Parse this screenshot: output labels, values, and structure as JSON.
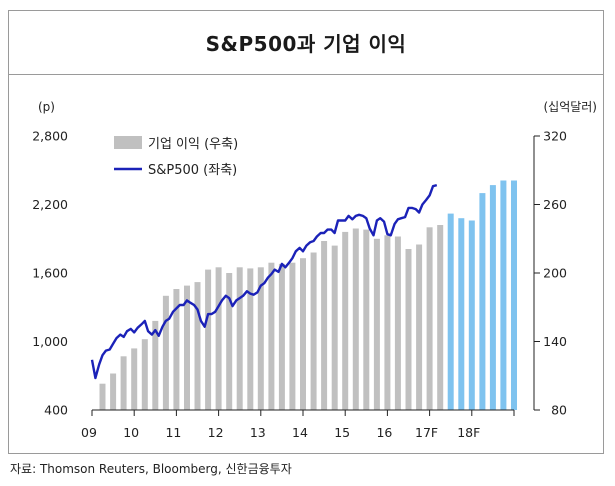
{
  "chart_data": {
    "type": "bar",
    "title": "S&P500과 기업 이익",
    "source": "자료: Thomson Reuters, Bloomberg, 신한금융투자",
    "left_axis": {
      "unit": "(p)",
      "range": [
        400,
        2800
      ],
      "ticks": [
        "2,800",
        "2,200",
        "1,600",
        "1,000",
        "400"
      ],
      "tick_values": [
        2800,
        2200,
        1600,
        1000,
        400
      ]
    },
    "right_axis": {
      "unit": "(십억달러)",
      "range": [
        80,
        320
      ],
      "ticks": [
        "320",
        "260",
        "200",
        "140",
        "80"
      ],
      "tick_values": [
        320,
        260,
        200,
        140,
        80
      ]
    },
    "x_axis": {
      "ticks": [
        "09",
        "10",
        "11",
        "12",
        "13",
        "14",
        "15",
        "16",
        "17F",
        "18F"
      ],
      "range": [
        2009.0,
        2019.0
      ]
    },
    "legend": {
      "position": "top-left",
      "items": [
        "기업 이익 (우축)",
        "S&P500 (좌축)"
      ]
    },
    "colors": {
      "bars_actual": "#c0c0c0",
      "bars_forecast": "#7fc3ef",
      "line": "#1b22b8"
    },
    "series": [
      {
        "name": "기업 이익 (우축)",
        "kind": "bar",
        "axis": "right",
        "x": [
          2009.0,
          2009.25,
          2009.5,
          2009.75,
          2010.0,
          2010.25,
          2010.5,
          2010.75,
          2011.0,
          2011.25,
          2011.5,
          2011.75,
          2012.0,
          2012.25,
          2012.5,
          2012.75,
          2013.0,
          2013.25,
          2013.5,
          2013.75,
          2014.0,
          2014.25,
          2014.5,
          2014.75,
          2015.0,
          2015.25,
          2015.5,
          2015.75,
          2016.0,
          2016.25,
          2016.5,
          2016.75,
          2017.0,
          2017.25,
          2017.5,
          2017.75,
          2018.0,
          2018.25,
          2018.5,
          2018.75
        ],
        "values": [
          103,
          112,
          127,
          134,
          142,
          158,
          180,
          186,
          189,
          192,
          203,
          205,
          200,
          205,
          204,
          205,
          209,
          208,
          209,
          213,
          218,
          228,
          224,
          236,
          239,
          238,
          230,
          233,
          232,
          221,
          225,
          240,
          242,
          252,
          248,
          246,
          270,
          277,
          281,
          281
        ],
        "forecast_from": 2017.25
      },
      {
        "name": "S&P500 (좌축)",
        "kind": "line",
        "axis": "left",
        "x": [
          2009.0,
          2009.08,
          2009.17,
          2009.25,
          2009.33,
          2009.42,
          2009.5,
          2009.58,
          2009.67,
          2009.75,
          2009.83,
          2009.92,
          2010.0,
          2010.08,
          2010.17,
          2010.25,
          2010.33,
          2010.42,
          2010.5,
          2010.58,
          2010.67,
          2010.75,
          2010.83,
          2010.92,
          2011.0,
          2011.08,
          2011.17,
          2011.25,
          2011.33,
          2011.42,
          2011.5,
          2011.58,
          2011.67,
          2011.75,
          2011.83,
          2011.92,
          2012.0,
          2012.08,
          2012.17,
          2012.25,
          2012.33,
          2012.42,
          2012.5,
          2012.58,
          2012.67,
          2012.75,
          2012.83,
          2012.92,
          2013.0,
          2013.08,
          2013.17,
          2013.25,
          2013.33,
          2013.42,
          2013.5,
          2013.58,
          2013.67,
          2013.75,
          2013.83,
          2013.92,
          2014.0,
          2014.08,
          2014.17,
          2014.25,
          2014.33,
          2014.42,
          2014.5,
          2014.58,
          2014.67,
          2014.75,
          2014.83,
          2014.92,
          2015.0,
          2015.08,
          2015.17,
          2015.25,
          2015.33,
          2015.42,
          2015.5,
          2015.58,
          2015.67,
          2015.75,
          2015.83,
          2015.92,
          2016.0,
          2016.08,
          2016.17,
          2016.25,
          2016.33,
          2016.42,
          2016.5,
          2016.58,
          2016.67,
          2016.75,
          2016.83,
          2016.92,
          2017.0,
          2017.08,
          2017.17
        ],
        "values": [
          840,
          680,
          800,
          880,
          920,
          930,
          980,
          1030,
          1060,
          1040,
          1090,
          1110,
          1080,
          1120,
          1150,
          1180,
          1090,
          1060,
          1100,
          1050,
          1130,
          1180,
          1200,
          1260,
          1290,
          1320,
          1320,
          1360,
          1340,
          1320,
          1280,
          1180,
          1130,
          1240,
          1240,
          1260,
          1310,
          1360,
          1400,
          1380,
          1310,
          1360,
          1380,
          1400,
          1440,
          1420,
          1410,
          1430,
          1490,
          1510,
          1560,
          1590,
          1630,
          1610,
          1680,
          1650,
          1690,
          1730,
          1790,
          1820,
          1790,
          1840,
          1870,
          1880,
          1920,
          1950,
          1950,
          1980,
          1980,
          1950,
          2060,
          2060,
          2060,
          2100,
          2070,
          2100,
          2110,
          2100,
          2080,
          1990,
          1930,
          2060,
          2080,
          2050,
          1940,
          1930,
          2030,
          2070,
          2080,
          2090,
          2170,
          2170,
          2160,
          2130,
          2200,
          2240,
          2280,
          2360,
          2370
        ]
      }
    ]
  }
}
